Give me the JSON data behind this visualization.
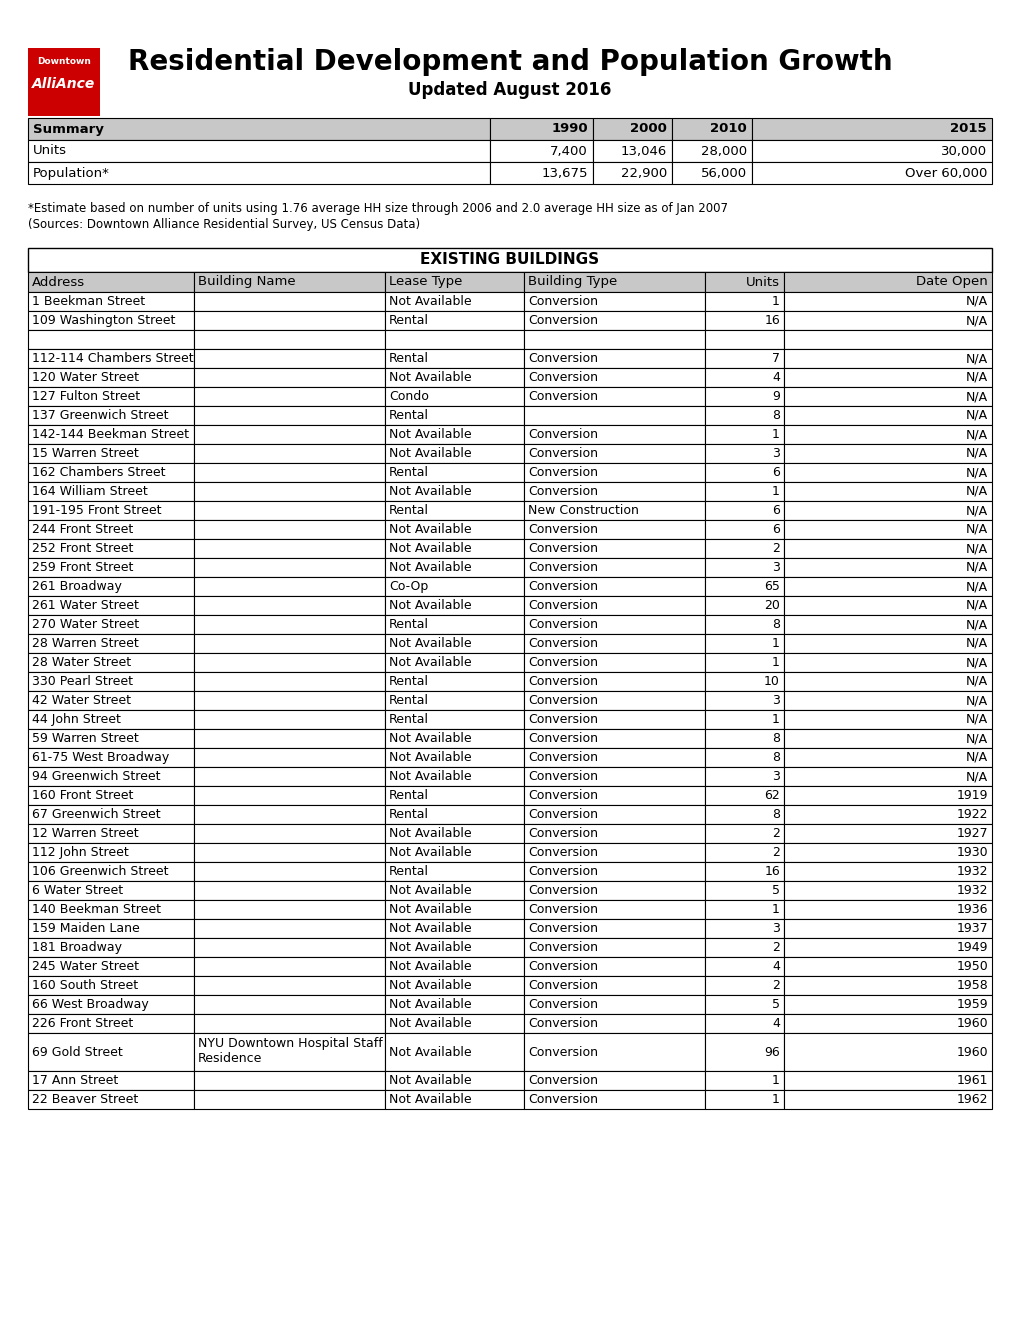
{
  "title": "Residential Development and Population Growth",
  "subtitle": "Updated August 2016",
  "background_color": "#ffffff",
  "footnote_line1": "*Estimate based on number of units using 1.76 average HH size through 2006 and 2.0 average HH size as of Jan 2007",
  "footnote_line2": "(Sources: Downtown Alliance Residential Survey, US Census Data)",
  "existing_title": "EXISTING BUILDINGS",
  "existing_header": [
    "Address",
    "Building Name",
    "Lease Type",
    "Building Type",
    "Units",
    "Date Open"
  ],
  "existing_rows": [
    [
      "1 Beekman Street",
      "",
      "Not Available",
      "Conversion",
      "1",
      "N/A"
    ],
    [
      "109 Washington Street",
      "",
      "Rental",
      "Conversion",
      "16",
      "N/A"
    ],
    [
      "",
      "",
      "",
      "",
      "",
      ""
    ],
    [
      "112-114 Chambers Street",
      "",
      "Rental",
      "Conversion",
      "7",
      "N/A"
    ],
    [
      "120 Water Street",
      "",
      "Not Available",
      "Conversion",
      "4",
      "N/A"
    ],
    [
      "127 Fulton Street",
      "",
      "Condo",
      "Conversion",
      "9",
      "N/A"
    ],
    [
      "137 Greenwich Street",
      "",
      "Rental",
      "",
      "8",
      "N/A"
    ],
    [
      "142-144 Beekman Street",
      "",
      "Not Available",
      "Conversion",
      "1",
      "N/A"
    ],
    [
      "15 Warren Street",
      "",
      "Not Available",
      "Conversion",
      "3",
      "N/A"
    ],
    [
      "162 Chambers Street",
      "",
      "Rental",
      "Conversion",
      "6",
      "N/A"
    ],
    [
      "164 William Street",
      "",
      "Not Available",
      "Conversion",
      "1",
      "N/A"
    ],
    [
      "191-195 Front Street",
      "",
      "Rental",
      "New Construction",
      "6",
      "N/A"
    ],
    [
      "244 Front Street",
      "",
      "Not Available",
      "Conversion",
      "6",
      "N/A"
    ],
    [
      "252 Front Street",
      "",
      "Not Available",
      "Conversion",
      "2",
      "N/A"
    ],
    [
      "259 Front Street",
      "",
      "Not Available",
      "Conversion",
      "3",
      "N/A"
    ],
    [
      "261 Broadway",
      "",
      "Co-Op",
      "Conversion",
      "65",
      "N/A"
    ],
    [
      "261 Water Street",
      "",
      "Not Available",
      "Conversion",
      "20",
      "N/A"
    ],
    [
      "270 Water Street",
      "",
      "Rental",
      "Conversion",
      "8",
      "N/A"
    ],
    [
      "28 Warren Street",
      "",
      "Not Available",
      "Conversion",
      "1",
      "N/A"
    ],
    [
      "28 Water Street",
      "",
      "Not Available",
      "Conversion",
      "1",
      "N/A"
    ],
    [
      "330 Pearl Street",
      "",
      "Rental",
      "Conversion",
      "10",
      "N/A"
    ],
    [
      "42 Water Street",
      "",
      "Rental",
      "Conversion",
      "3",
      "N/A"
    ],
    [
      "44 John Street",
      "",
      "Rental",
      "Conversion",
      "1",
      "N/A"
    ],
    [
      "59 Warren Street",
      "",
      "Not Available",
      "Conversion",
      "8",
      "N/A"
    ],
    [
      "61-75 West Broadway",
      "",
      "Not Available",
      "Conversion",
      "8",
      "N/A"
    ],
    [
      "94 Greenwich Street",
      "",
      "Not Available",
      "Conversion",
      "3",
      "N/A"
    ],
    [
      "160 Front Street",
      "",
      "Rental",
      "Conversion",
      "62",
      "1919"
    ],
    [
      "67 Greenwich Street",
      "",
      "Rental",
      "Conversion",
      "8",
      "1922"
    ],
    [
      "12 Warren Street",
      "",
      "Not Available",
      "Conversion",
      "2",
      "1927"
    ],
    [
      "112 John Street",
      "",
      "Not Available",
      "Conversion",
      "2",
      "1930"
    ],
    [
      "106 Greenwich Street",
      "",
      "Rental",
      "Conversion",
      "16",
      "1932"
    ],
    [
      "6 Water Street",
      "",
      "Not Available",
      "Conversion",
      "5",
      "1932"
    ],
    [
      "140 Beekman Street",
      "",
      "Not Available",
      "Conversion",
      "1",
      "1936"
    ],
    [
      "159 Maiden Lane",
      "",
      "Not Available",
      "Conversion",
      "3",
      "1937"
    ],
    [
      "181 Broadway",
      "",
      "Not Available",
      "Conversion",
      "2",
      "1949"
    ],
    [
      "245 Water Street",
      "",
      "Not Available",
      "Conversion",
      "4",
      "1950"
    ],
    [
      "160 South Street",
      "",
      "Not Available",
      "Conversion",
      "2",
      "1958"
    ],
    [
      "66 West Broadway",
      "",
      "Not Available",
      "Conversion",
      "5",
      "1959"
    ],
    [
      "226 Front Street",
      "",
      "Not Available",
      "Conversion",
      "4",
      "1960"
    ],
    [
      "69 Gold Street",
      "NYU Downtown Hospital Staff\nResidence",
      "Not Available",
      "Conversion",
      "96",
      "1960"
    ],
    [
      "17 Ann Street",
      "",
      "Not Available",
      "Conversion",
      "1",
      "1961"
    ],
    [
      "22 Beaver Street",
      "",
      "Not Available",
      "Conversion",
      "1",
      "1962"
    ]
  ],
  "header_bg": "#c8c8c8",
  "logo_bg": "#cc0000",
  "border_color": "#000000",
  "summary_data": [
    [
      "Summary",
      "1990",
      "2000",
      "2010",
      "2015"
    ],
    [
      "Units",
      "7,400",
      "13,046",
      "28,000",
      "30,000"
    ],
    [
      "Population*",
      "13,675",
      "22,900",
      "56,000",
      "Over 60,000"
    ]
  ]
}
